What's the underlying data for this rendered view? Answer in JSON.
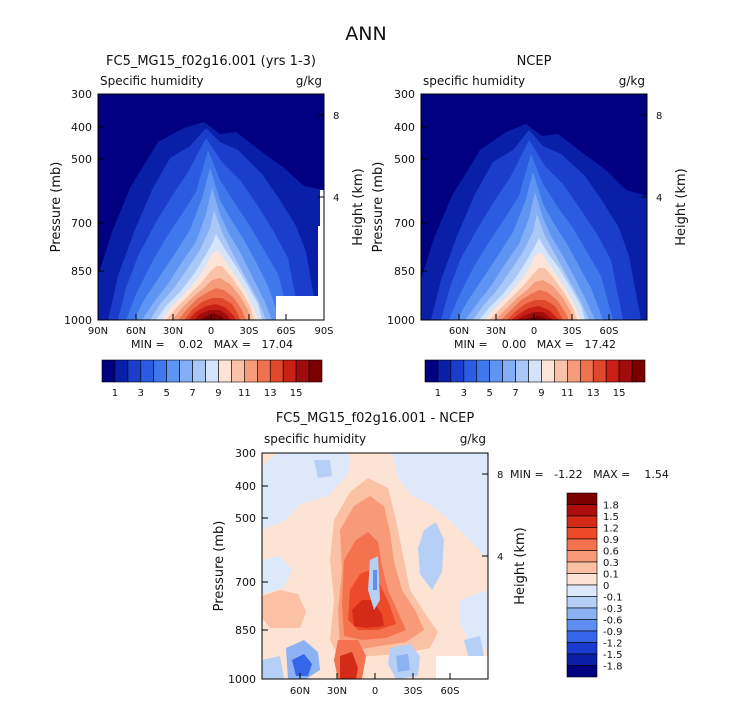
{
  "figure": {
    "title": "ANN"
  },
  "panels": [
    {
      "id": "model",
      "title": "FC5_MG15_f02g16.001 (yrs 1-3)",
      "left_label": "Specific humidity",
      "right_label": "g/kg",
      "ylabel": "Pressure (mb)",
      "y2label": "Height (km)",
      "stats_text": "MIN =    0.02   MAX =   17.04"
    },
    {
      "id": "obs",
      "title": "NCEP",
      "left_label": "specific humidity",
      "right_label": "g/kg",
      "ylabel": "Pressure (mb)",
      "y2label": "Height (km)",
      "stats_text": "MIN =    0.00   MAX =   17.42"
    },
    {
      "id": "diff",
      "title": "FC5_MG15_f02g16.001 - NCEP",
      "left_label": "specific humidity",
      "right_label": "g/kg",
      "ylabel": "Pressure (mb)",
      "y2label": "Height (km)",
      "stats_text": "MIN =   -1.22   MAX =    1.54"
    }
  ],
  "colorbar_abs": {
    "labels": [
      "1",
      "3",
      "5",
      "7",
      "9",
      "11",
      "13",
      "15"
    ],
    "colors": [
      "#000080",
      "#0a1fa8",
      "#1a3dcc",
      "#2a5be0",
      "#3e78ec",
      "#5f95f2",
      "#84aef5",
      "#a9c8f7",
      "#d4e4fb",
      "#fde4d6",
      "#fac2a8",
      "#f59c7a",
      "#ee7250",
      "#e0482b",
      "#c92016",
      "#a00c0c",
      "#7a0000"
    ]
  },
  "colorbar_diff": {
    "labels": [
      "1.8",
      "1.5",
      "1.2",
      "0.9",
      "0.6",
      "0.3",
      "0.1",
      "0",
      "-0.1",
      "-0.3",
      "-0.6",
      "-0.9",
      "-1.2",
      "-1.5",
      "-1.8"
    ],
    "colors": [
      "#7a0000",
      "#b00e0e",
      "#d42a18",
      "#ec4a28",
      "#f4734e",
      "#f89a78",
      "#fbc1a4",
      "#fde3d3",
      "#dde9fb",
      "#b5cff7",
      "#8cb2f3",
      "#5f8ef0",
      "#3565e8",
      "#1a3ad0",
      "#0b1ea6",
      "#000080"
    ]
  },
  "chart_data": [
    {
      "type": "heatmap",
      "panel": "model",
      "title": "FC5_MG15_f02g16.001 (yrs 1-3)",
      "ylabel": "Pressure (mb)",
      "y2label": "Height (km)",
      "x_ticks": [
        "90N",
        "60N",
        "30N",
        "0",
        "30S",
        "60S",
        "90S"
      ],
      "x_range": [
        90,
        -90
      ],
      "y_ticks": [
        "300",
        "400",
        "500",
        "700",
        "850",
        "1000"
      ],
      "y_range": [
        1000,
        300
      ],
      "y_scale": "log",
      "y2_ticks": [
        "4",
        "8"
      ],
      "levels": [
        1,
        2,
        3,
        4,
        5,
        6,
        7,
        8,
        9,
        10,
        11,
        12,
        13,
        14,
        15,
        16
      ],
      "min": 0.02,
      "max": 17.04,
      "units": "g/kg"
    },
    {
      "type": "heatmap",
      "panel": "obs",
      "title": "NCEP",
      "ylabel": "Pressure (mb)",
      "y2label": "Height (km)",
      "x_ticks": [
        "60N",
        "30N",
        "0",
        "30S",
        "60S"
      ],
      "x_range": [
        90,
        -90
      ],
      "y_ticks": [
        "300",
        "400",
        "500",
        "700",
        "850",
        "1000"
      ],
      "y_range": [
        1000,
        300
      ],
      "y_scale": "log",
      "y2_ticks": [
        "4",
        "8"
      ],
      "levels": [
        1,
        2,
        3,
        4,
        5,
        6,
        7,
        8,
        9,
        10,
        11,
        12,
        13,
        14,
        15,
        16
      ],
      "min": 0.0,
      "max": 17.42,
      "units": "g/kg"
    },
    {
      "type": "heatmap",
      "panel": "diff",
      "title": "FC5_MG15_f02g16.001 - NCEP",
      "ylabel": "Pressure (mb)",
      "y2label": "Height (km)",
      "x_ticks": [
        "60N",
        "30N",
        "0",
        "30S",
        "60S"
      ],
      "x_range": [
        90,
        -90
      ],
      "y_ticks": [
        "300",
        "400",
        "500",
        "700",
        "850",
        "1000"
      ],
      "y_range": [
        1000,
        300
      ],
      "y_scale": "log",
      "y2_ticks": [
        "4",
        "8"
      ],
      "levels": [
        -1.8,
        -1.5,
        -1.2,
        -0.9,
        -0.6,
        -0.3,
        -0.1,
        0,
        0.1,
        0.3,
        0.6,
        0.9,
        1.2,
        1.5,
        1.8
      ],
      "min": -1.22,
      "max": 1.54,
      "units": "g/kg"
    }
  ]
}
